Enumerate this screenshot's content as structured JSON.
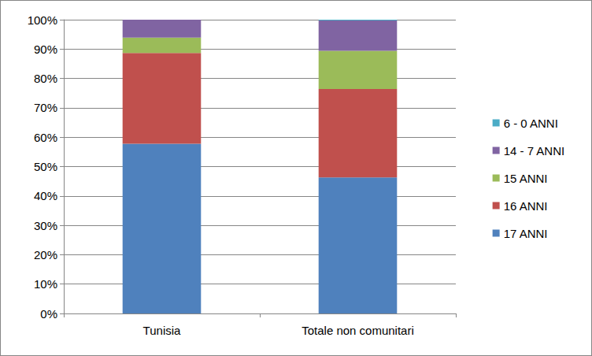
{
  "chart_data": {
    "type": "bar",
    "stacked": true,
    "grid": true,
    "legend": "right",
    "categories": [
      "Tunisia",
      "Totale non comunitari"
    ],
    "series": [
      {
        "name": "17 ANNI",
        "color": "#4f81bd",
        "values": [
          57.8,
          46.3
        ]
      },
      {
        "name": "16 ANNI",
        "color": "#c0504d",
        "values": [
          30.9,
          30.1
        ]
      },
      {
        "name": "15 ANNI",
        "color": "#9bbb59",
        "values": [
          5.2,
          13.0
        ]
      },
      {
        "name": "14 - 7 ANNI",
        "color": "#8064a2",
        "values": [
          6.1,
          10.3
        ]
      },
      {
        "name": "6 - 0 ANNI",
        "color": "#4bacc6",
        "values": [
          0.0,
          0.3
        ]
      }
    ],
    "ylim": [
      0,
      100
    ],
    "yticks": [
      {
        "value": 0,
        "label": "0%"
      },
      {
        "value": 10,
        "label": "10%"
      },
      {
        "value": 20,
        "label": "20%"
      },
      {
        "value": 30,
        "label": "30%"
      },
      {
        "value": 40,
        "label": "40%"
      },
      {
        "value": 50,
        "label": "50%"
      },
      {
        "value": 60,
        "label": "60%"
      },
      {
        "value": 70,
        "label": "70%"
      },
      {
        "value": 80,
        "label": "80%"
      },
      {
        "value": 90,
        "label": "90%"
      },
      {
        "value": 100,
        "label": "100%"
      }
    ]
  }
}
